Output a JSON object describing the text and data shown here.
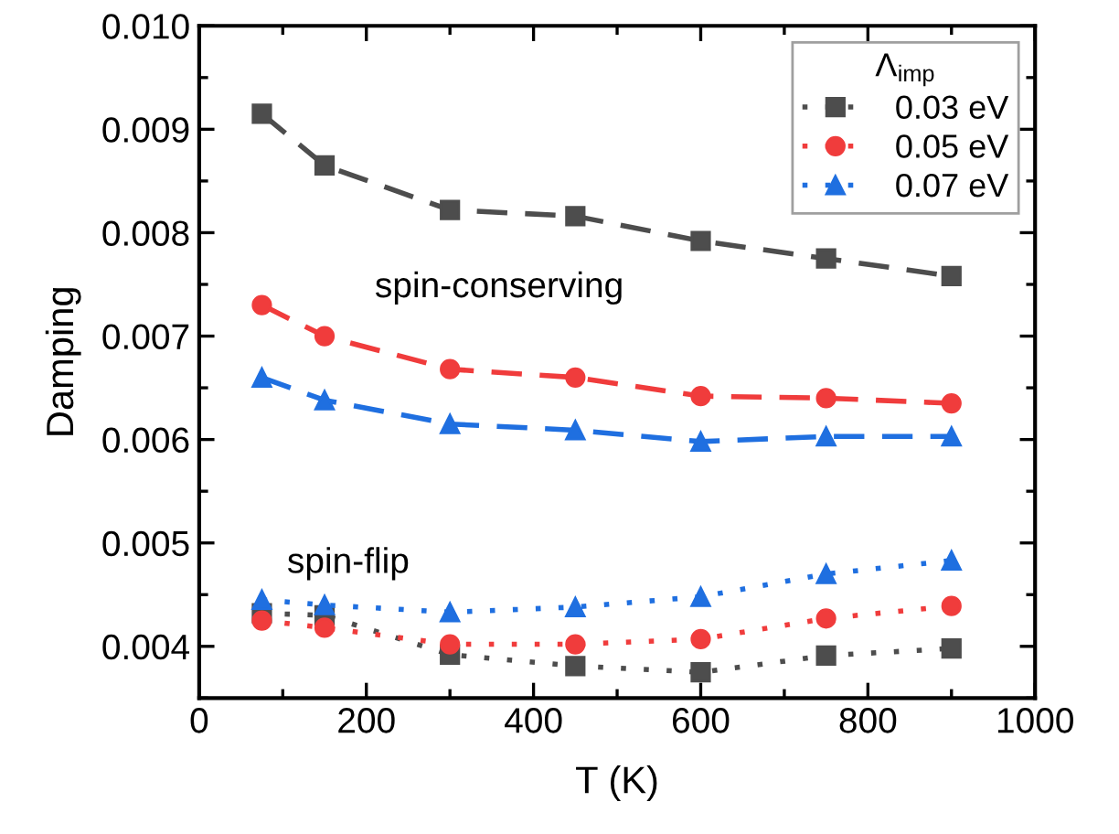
{
  "chart_data": {
    "type": "line",
    "xlabel": "T (K)",
    "ylabel": "Damping",
    "legend_title": "Λ$_{imp}$",
    "x": [
      75,
      150,
      300,
      450,
      600,
      750,
      900
    ],
    "series": [
      {
        "color": "#4d4d4d",
        "marker": "square",
        "line_style": "dashed",
        "values": [
          0.00915,
          0.00865,
          0.00822,
          0.00816,
          0.00792,
          0.00775,
          0.00758
        ]
      },
      {
        "color": "#f03c3c",
        "marker": "circle",
        "line_style": "dashed",
        "values": [
          0.0073,
          0.007,
          0.00668,
          0.0066,
          0.00642,
          0.0064,
          0.00635
        ]
      },
      {
        "color": "#1f6fe0",
        "marker": "triangle",
        "line_style": "dashed",
        "values": [
          0.0066,
          0.00638,
          0.00615,
          0.00609,
          0.00598,
          0.00603,
          0.00603
        ]
      },
      {
        "name": "0.03 eV",
        "color": "#4d4d4d",
        "marker": "square",
        "line_style": "dotted",
        "values": [
          0.00432,
          0.0043,
          0.00392,
          0.00381,
          0.00375,
          0.00391,
          0.00398
        ]
      },
      {
        "name": "0.05 eV",
        "color": "#f03c3c",
        "marker": "circle",
        "line_style": "dotted",
        "values": [
          0.00425,
          0.00418,
          0.00402,
          0.00402,
          0.00407,
          0.00427,
          0.00439
        ]
      },
      {
        "name": "0.07 eV",
        "color": "#1f6fe0",
        "marker": "triangle",
        "line_style": "dotted",
        "values": [
          0.00445,
          0.0044,
          0.00433,
          0.00438,
          0.00448,
          0.0047,
          0.00483
        ]
      }
    ],
    "annotations": [
      "spin-conserving",
      "spin-flip"
    ],
    "xlim": [
      0,
      1000
    ],
    "xticks": [
      0,
      200,
      400,
      600,
      800,
      1000
    ],
    "ylim": [
      0.0035,
      0.01
    ],
    "yticks": [
      {
        "value": 0.004,
        "label": "0.004"
      },
      {
        "value": 0.005,
        "label": "0.005"
      },
      {
        "value": 0.006,
        "label": "0.006"
      },
      {
        "value": 0.007,
        "label": "0.007"
      },
      {
        "value": 0.008,
        "label": "0.008"
      },
      {
        "value": 0.009,
        "label": "0.009"
      },
      {
        "value": 0.01,
        "label": "0.010"
      }
    ],
    "grid": false,
    "legend": "top right"
  }
}
